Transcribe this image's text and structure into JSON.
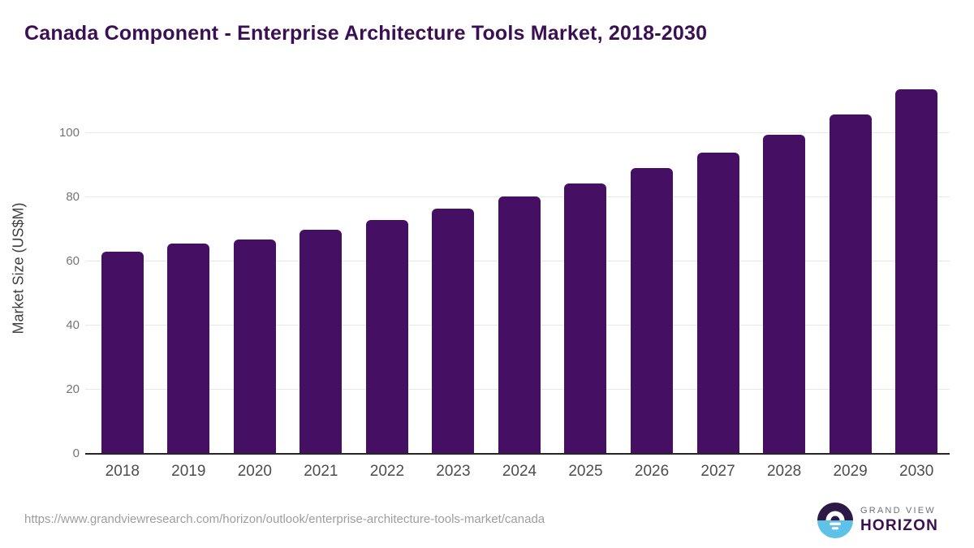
{
  "title": "Canada Component - Enterprise Architecture Tools Market, 2018-2030",
  "chart_data": {
    "type": "bar",
    "title": "Canada Component - Enterprise Architecture Tools Market, 2018-2030",
    "categories": [
      "2018",
      "2019",
      "2020",
      "2021",
      "2022",
      "2023",
      "2024",
      "2025",
      "2026",
      "2027",
      "2028",
      "2029",
      "2030"
    ],
    "values": [
      62.7,
      65.3,
      66.5,
      69.7,
      72.8,
      76.2,
      80.0,
      84.1,
      88.8,
      93.7,
      99.4,
      105.7,
      113.4
    ],
    "xlabel": "",
    "ylabel": "Market Size (US$M)",
    "yticks": [
      0,
      20,
      40,
      60,
      80,
      100
    ],
    "ylim": [
      0,
      116
    ],
    "grid": "horizontal",
    "legend": "none",
    "bar_color": "#451063"
  },
  "footer": {
    "url": "https://www.grandviewresearch.com/horizon/outlook/enterprise-architecture-tools-market/canada",
    "logo": {
      "line1": "GRAND VIEW",
      "line2": "HORIZON"
    }
  },
  "colors": {
    "title_text": "#3b1053",
    "bar": "#451063",
    "gridline": "#e8e8e8",
    "axis_line": "#262626",
    "y_tick_text": "#757575",
    "x_tick_text": "#4d4d4d",
    "y_axis_title_text": "#404040",
    "url_text": "#9e9e9e",
    "logo_purple": "#2d1846",
    "logo_blue": "#5ec1e8",
    "logo_gray_text": "#6f6f78"
  }
}
